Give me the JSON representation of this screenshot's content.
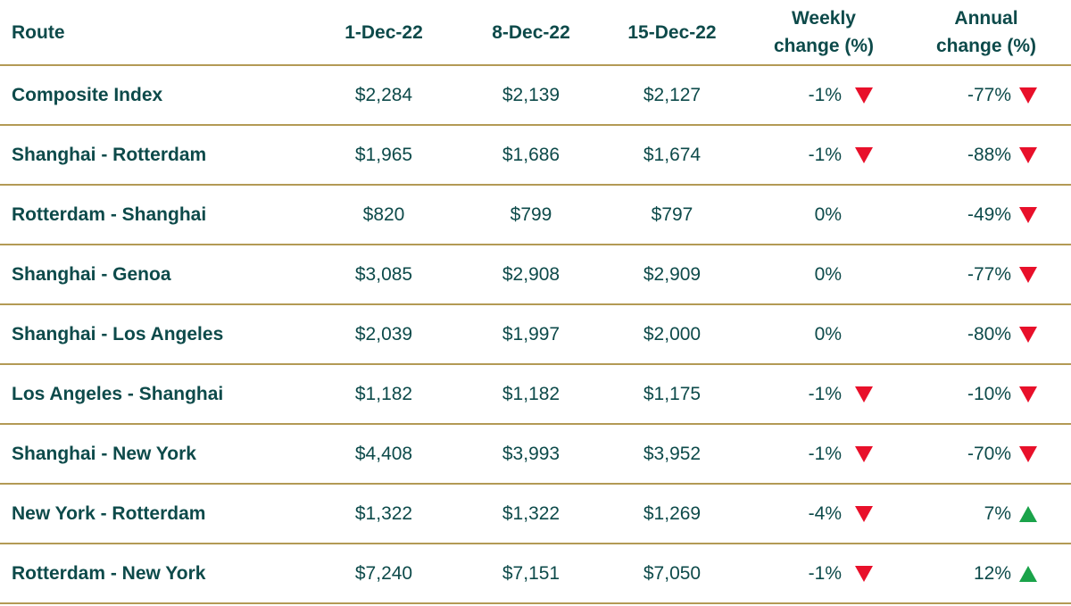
{
  "chart_data": {
    "type": "table",
    "columns": [
      "Route",
      "1-Dec-22",
      "8-Dec-22",
      "15-Dec-22",
      "Weekly\nchange (%)",
      "Annual\nchange (%)"
    ],
    "rows": [
      {
        "route": "Composite Index",
        "v1": "$2,284",
        "v2": "$2,139",
        "v3": "$2,127",
        "weekly": "-1%",
        "weekly_dir": "down",
        "annual": "-77%",
        "annual_dir": "down"
      },
      {
        "route": "Shanghai - Rotterdam",
        "v1": "$1,965",
        "v2": "$1,686",
        "v3": "$1,674",
        "weekly": "-1%",
        "weekly_dir": "down",
        "annual": "-88%",
        "annual_dir": "down"
      },
      {
        "route": "Rotterdam - Shanghai",
        "v1": "$820",
        "v2": "$799",
        "v3": "$797",
        "weekly": "0%",
        "weekly_dir": "none",
        "annual": "-49%",
        "annual_dir": "down"
      },
      {
        "route": "Shanghai - Genoa",
        "v1": "$3,085",
        "v2": "$2,908",
        "v3": "$2,909",
        "weekly": "0%",
        "weekly_dir": "none",
        "annual": "-77%",
        "annual_dir": "down"
      },
      {
        "route": "Shanghai - Los Angeles",
        "v1": "$2,039",
        "v2": "$1,997",
        "v3": "$2,000",
        "weekly": "0%",
        "weekly_dir": "none",
        "annual": "-80%",
        "annual_dir": "down"
      },
      {
        "route": "Los Angeles - Shanghai",
        "v1": "$1,182",
        "v2": "$1,182",
        "v3": "$1,175",
        "weekly": "-1%",
        "weekly_dir": "down",
        "annual": "-10%",
        "annual_dir": "down"
      },
      {
        "route": "Shanghai - New York",
        "v1": "$4,408",
        "v2": "$3,993",
        "v3": "$3,952",
        "weekly": "-1%",
        "weekly_dir": "down",
        "annual": "-70%",
        "annual_dir": "down"
      },
      {
        "route": "New York - Rotterdam",
        "v1": "$1,322",
        "v2": "$1,322",
        "v3": "$1,269",
        "weekly": "-4%",
        "weekly_dir": "down",
        "annual": "7%",
        "annual_dir": "up"
      },
      {
        "route": "Rotterdam - New York",
        "v1": "$7,240",
        "v2": "$7,151",
        "v3": "$7,050",
        "weekly": "-1%",
        "weekly_dir": "down",
        "annual": "12%",
        "annual_dir": "up"
      }
    ]
  },
  "colors": {
    "text": "#0d4a4a",
    "rule": "#b39a55",
    "down": "#e8102a",
    "up": "#1aa34a"
  },
  "icons": {
    "down": "triangle-down-icon",
    "up": "triangle-up-icon"
  }
}
